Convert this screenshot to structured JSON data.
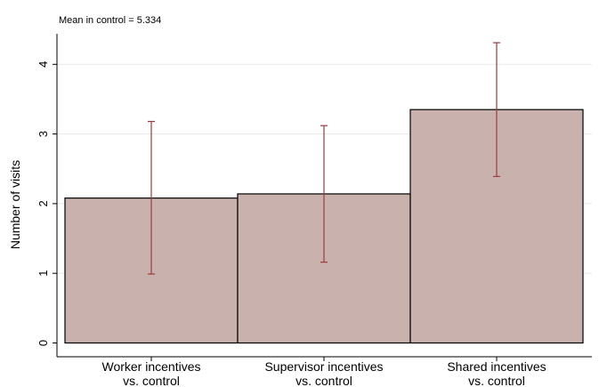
{
  "note": "Mean in control = 5.334",
  "chart_data": {
    "type": "bar",
    "categories": [
      [
        "Worker incentives",
        "vs. control"
      ],
      [
        "Supervisor incentives",
        "vs. control"
      ],
      [
        "Shared incentives",
        "vs. control"
      ]
    ],
    "values": [
      2.08,
      2.14,
      3.35
    ],
    "ci_low": [
      0.99,
      1.16,
      2.39
    ],
    "ci_high": [
      3.18,
      3.12,
      4.31
    ],
    "ylabel": "Number of visits",
    "ylim": [
      0,
      4.4
    ],
    "yticks": [
      0,
      1,
      2,
      3,
      4
    ],
    "grid": true,
    "bar_color": "#c9b2ae",
    "errorbar_color": "#9b3a3a"
  }
}
